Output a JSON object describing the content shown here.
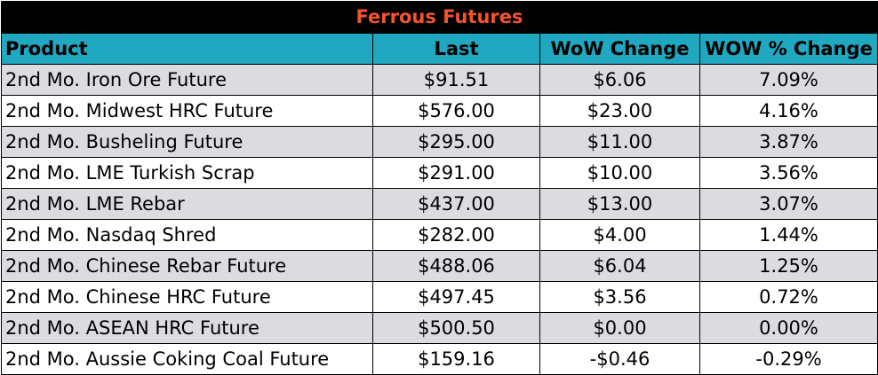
{
  "table": {
    "title": "Ferrous Futures",
    "headers": {
      "product": "Product",
      "last": "Last",
      "wow_change": "WoW Change",
      "wow_pct_change": "WOW % Change"
    },
    "rows": [
      {
        "product": "2nd Mo. Iron Ore Future",
        "last": "$91.51",
        "wow_change": "$6.06",
        "wow_pct_change": "7.09%"
      },
      {
        "product": "2nd Mo. Midwest HRC Future",
        "last": "$576.00",
        "wow_change": "$23.00",
        "wow_pct_change": "4.16%"
      },
      {
        "product": "2nd Mo. Busheling Future",
        "last": "$295.00",
        "wow_change": "$11.00",
        "wow_pct_change": "3.87%"
      },
      {
        "product": "2nd Mo. LME Turkish Scrap",
        "last": "$291.00",
        "wow_change": "$10.00",
        "wow_pct_change": "3.56%"
      },
      {
        "product": "2nd Mo. LME Rebar",
        "last": "$437.00",
        "wow_change": "$13.00",
        "wow_pct_change": "3.07%"
      },
      {
        "product": "2nd Mo. Nasdaq Shred",
        "last": "$282.00",
        "wow_change": "$4.00",
        "wow_pct_change": "1.44%"
      },
      {
        "product": "2nd Mo. Chinese Rebar Future",
        "last": "$488.06",
        "wow_change": "$6.04",
        "wow_pct_change": "1.25%"
      },
      {
        "product": "2nd Mo. Chinese HRC Future",
        "last": "$497.45",
        "wow_change": "$3.56",
        "wow_pct_change": "0.72%"
      },
      {
        "product": "2nd Mo. ASEAN HRC Future",
        "last": "$500.50",
        "wow_change": "$0.00",
        "wow_pct_change": "0.00%"
      },
      {
        "product": "2nd Mo. Aussie Coking Coal Future",
        "last": "$159.16",
        "wow_change": "-$0.46",
        "wow_pct_change": "-0.29%"
      }
    ]
  },
  "colors": {
    "title_background": "#000000",
    "title_text": "#f2552c",
    "header_background": "#1fa8c0",
    "row_shaded": "#dcdbe0",
    "row_plain": "#ffffff"
  }
}
